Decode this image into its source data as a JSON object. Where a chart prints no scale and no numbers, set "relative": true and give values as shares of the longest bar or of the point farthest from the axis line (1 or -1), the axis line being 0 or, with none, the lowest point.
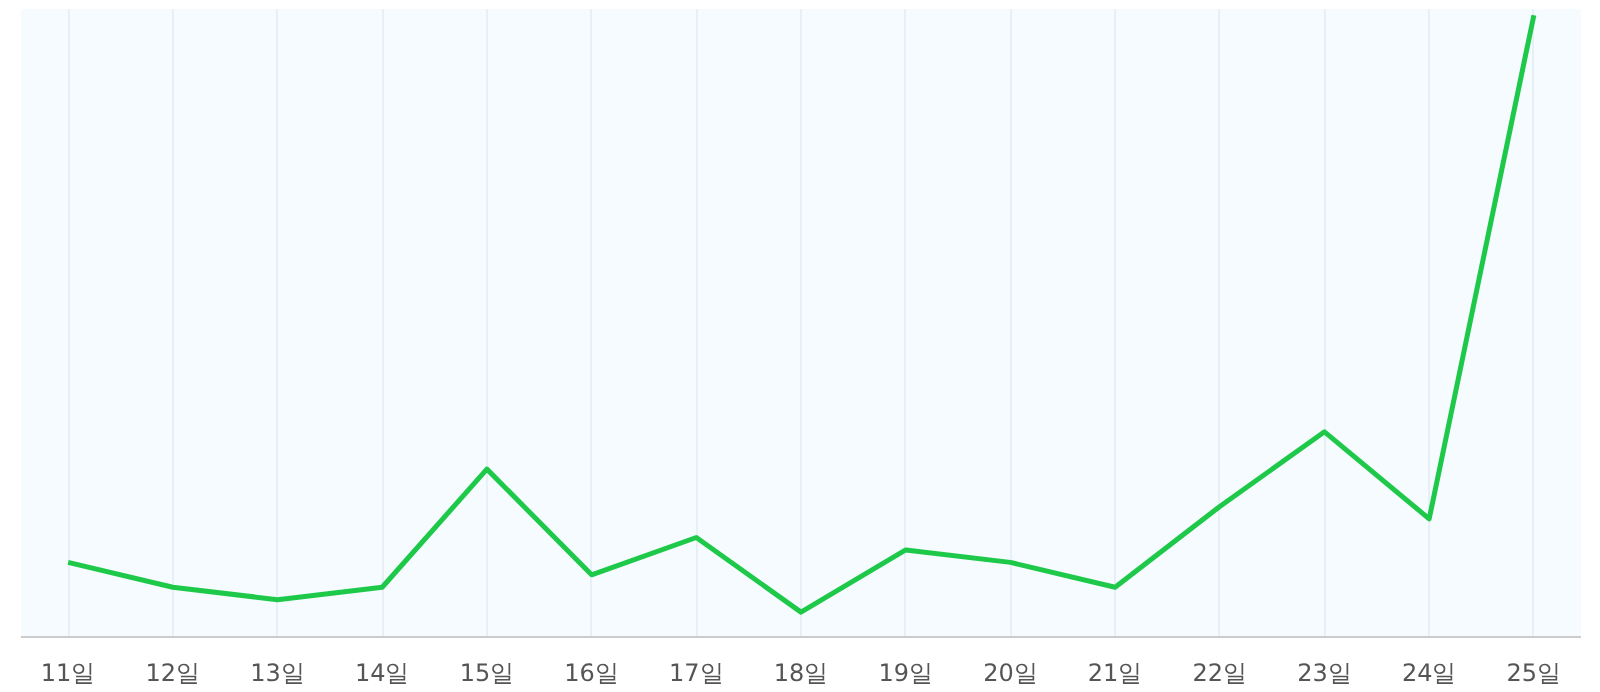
{
  "chart_data": {
    "type": "line",
    "relative": true,
    "grid": "x",
    "categories": [
      "11일",
      "12일",
      "13일",
      "14일",
      "15일",
      "16일",
      "17일",
      "18일",
      "19일",
      "20일",
      "21일",
      "22일",
      "23일",
      "24일",
      "25일"
    ],
    "series": [
      {
        "color": "#1ec94a",
        "values": [
          0.12,
          0.08,
          0.06,
          0.08,
          0.27,
          0.1,
          0.16,
          0.04,
          0.14,
          0.12,
          0.08,
          0.21,
          0.33,
          0.19,
          1
        ]
      }
    ],
    "marker": "none",
    "line_style": "solid"
  }
}
